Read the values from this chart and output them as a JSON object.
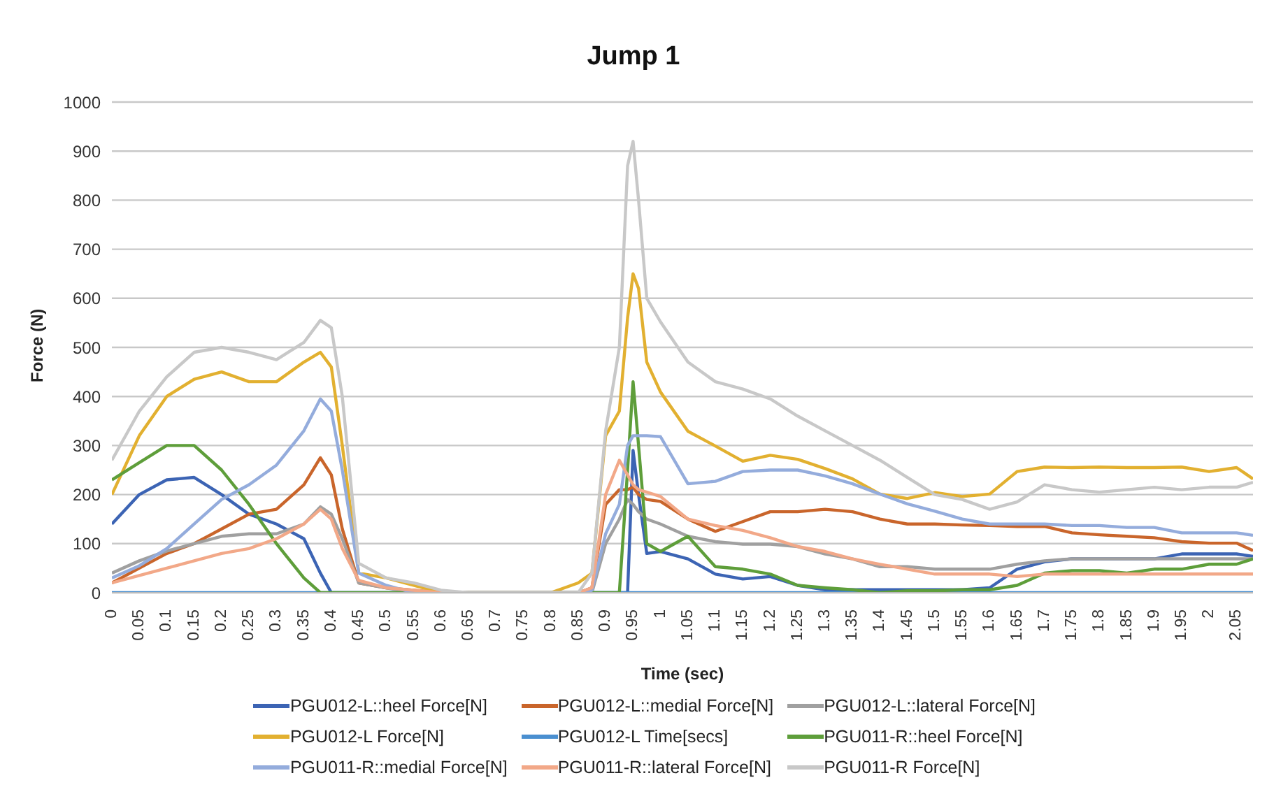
{
  "chart_data": {
    "type": "line",
    "title": "Jump 1",
    "xlabel": "Time (sec)",
    "ylabel": "Force (N)",
    "x": [
      0,
      0.05,
      0.1,
      0.15,
      0.2,
      0.25,
      0.3,
      0.35,
      0.38,
      0.4,
      0.42,
      0.45,
      0.5,
      0.55,
      0.6,
      0.65,
      0.7,
      0.75,
      0.8,
      0.85,
      0.875,
      0.9,
      0.925,
      0.94,
      0.95,
      0.96,
      0.975,
      1,
      1.05,
      1.1,
      1.15,
      1.2,
      1.25,
      1.3,
      1.35,
      1.4,
      1.45,
      1.5,
      1.55,
      1.6,
      1.65,
      1.7,
      1.75,
      1.8,
      1.85,
      1.9,
      1.95,
      2,
      2.05,
      2.08
    ],
    "xlim": [
      0,
      2.08
    ],
    "xticks": [
      0,
      0.05,
      0.1,
      0.15,
      0.2,
      0.25,
      0.3,
      0.35,
      0.4,
      0.45,
      0.5,
      0.55,
      0.6,
      0.65,
      0.7,
      0.75,
      0.8,
      0.85,
      0.9,
      0.95,
      1,
      1.05,
      1.1,
      1.15,
      1.2,
      1.25,
      1.3,
      1.35,
      1.4,
      1.45,
      1.5,
      1.55,
      1.6,
      1.65,
      1.7,
      1.75,
      1.8,
      1.85,
      1.9,
      1.95,
      2,
      2.05
    ],
    "ylim": [
      0,
      1000
    ],
    "yticks": [
      0,
      100,
      200,
      300,
      400,
      500,
      600,
      700,
      800,
      900,
      1000
    ],
    "grid": "y",
    "legend": "bottom",
    "marker": "none",
    "line_style": "solid",
    "series": [
      {
        "name": "PGU012-L::heel Force[N]",
        "color": "#3c64b4",
        "values": [
          140,
          200,
          230,
          235,
          200,
          160,
          140,
          110,
          40,
          0,
          0,
          0,
          0,
          0,
          0,
          0,
          0,
          0,
          0,
          0,
          0,
          0,
          0,
          0,
          290,
          200,
          80,
          84,
          69,
          38,
          28,
          33,
          15,
          6,
          6,
          6,
          6,
          6,
          6,
          10,
          48,
          63,
          69,
          69,
          69,
          69,
          79,
          79,
          79,
          74
        ]
      },
      {
        "name": "PGU012-L::medial Force[N]",
        "color": "#c9652b",
        "values": [
          20,
          50,
          80,
          100,
          130,
          160,
          170,
          220,
          275,
          240,
          130,
          20,
          10,
          5,
          0,
          0,
          0,
          0,
          0,
          0,
          10,
          180,
          210,
          210,
          215,
          200,
          190,
          186,
          150,
          125,
          145,
          165,
          165,
          170,
          165,
          150,
          140,
          140,
          138,
          137,
          135,
          135,
          122,
          118,
          115,
          112,
          104,
          101,
          101,
          86
        ]
      },
      {
        "name": "PGU012-L::lateral Force[N]",
        "color": "#a0a0a0",
        "values": [
          40,
          65,
          85,
          100,
          115,
          120,
          120,
          140,
          175,
          160,
          110,
          20,
          10,
          0,
          0,
          0,
          0,
          0,
          0,
          0,
          0,
          100,
          150,
          190,
          180,
          165,
          150,
          140,
          115,
          104,
          99,
          99,
          94,
          79,
          69,
          53,
          53,
          48,
          48,
          48,
          58,
          65,
          69,
          69,
          69,
          69,
          69,
          69,
          69,
          69
        ]
      },
      {
        "name": "PGU012-L Force[N]",
        "color": "#e2b030",
        "values": [
          200,
          320,
          400,
          435,
          450,
          430,
          430,
          470,
          490,
          460,
          300,
          40,
          30,
          15,
          0,
          0,
          0,
          0,
          0,
          20,
          40,
          320,
          370,
          560,
          650,
          620,
          470,
          409,
          329,
          299,
          268,
          280,
          272,
          253,
          232,
          201,
          192,
          204,
          196,
          201,
          247,
          256,
          255,
          256,
          255,
          255,
          256,
          247,
          255,
          232
        ]
      },
      {
        "name": "PGU012-L Time[secs]",
        "color": "#4a8fd0",
        "values": [
          0,
          0,
          0,
          0,
          0,
          0,
          0,
          0,
          0,
          0,
          0,
          0,
          0,
          0,
          0,
          0,
          0,
          0,
          0,
          0,
          0,
          0,
          0,
          0,
          0,
          0,
          0,
          0,
          0,
          0,
          0,
          0,
          0,
          0,
          0,
          0,
          0,
          0,
          0,
          0,
          0,
          0,
          0,
          0,
          0,
          0,
          0,
          0,
          0,
          0
        ]
      },
      {
        "name": "PGU011-R::heel Force[N]",
        "color": "#5e9e3a",
        "values": [
          230,
          265,
          300,
          300,
          250,
          180,
          100,
          30,
          0,
          0,
          0,
          0,
          0,
          0,
          0,
          0,
          0,
          0,
          0,
          0,
          0,
          0,
          0,
          250,
          430,
          300,
          100,
          84,
          115,
          53,
          48,
          38,
          15,
          10,
          6,
          0,
          4,
          4,
          6,
          6,
          15,
          40,
          45,
          45,
          40,
          48,
          48,
          58,
          58,
          69
        ]
      },
      {
        "name": "PGU011-R::medial Force[N]",
        "color": "#94acdc",
        "values": [
          30,
          55,
          90,
          140,
          190,
          220,
          260,
          330,
          395,
          370,
          250,
          40,
          15,
          0,
          0,
          0,
          0,
          0,
          0,
          0,
          5,
          120,
          180,
          300,
          320,
          320,
          320,
          318,
          222,
          227,
          247,
          250,
          250,
          238,
          222,
          201,
          181,
          166,
          150,
          140,
          140,
          140,
          137,
          137,
          133,
          133,
          122,
          122,
          122,
          117
        ]
      },
      {
        "name": "PGU011-R::lateral Force[N]",
        "color": "#f2a888",
        "values": [
          20,
          35,
          50,
          65,
          80,
          90,
          110,
          140,
          170,
          150,
          90,
          25,
          10,
          5,
          0,
          0,
          0,
          0,
          0,
          0,
          10,
          200,
          270,
          240,
          220,
          210,
          205,
          196,
          150,
          137,
          127,
          112,
          94,
          84,
          69,
          58,
          48,
          38,
          38,
          38,
          33,
          38,
          38,
          38,
          38,
          38,
          38,
          38,
          38,
          38
        ]
      },
      {
        "name": "PGU011-R Force[N]",
        "color": "#c8c8c8",
        "values": [
          270,
          370,
          440,
          490,
          500,
          490,
          475,
          510,
          555,
          540,
          400,
          60,
          30,
          20,
          5,
          0,
          0,
          0,
          0,
          0,
          40,
          330,
          500,
          870,
          920,
          800,
          600,
          552,
          470,
          430,
          415,
          395,
          360,
          330,
          300,
          270,
          235,
          200,
          190,
          170,
          185,
          220,
          210,
          205,
          210,
          215,
          210,
          215,
          215,
          225
        ]
      }
    ]
  }
}
